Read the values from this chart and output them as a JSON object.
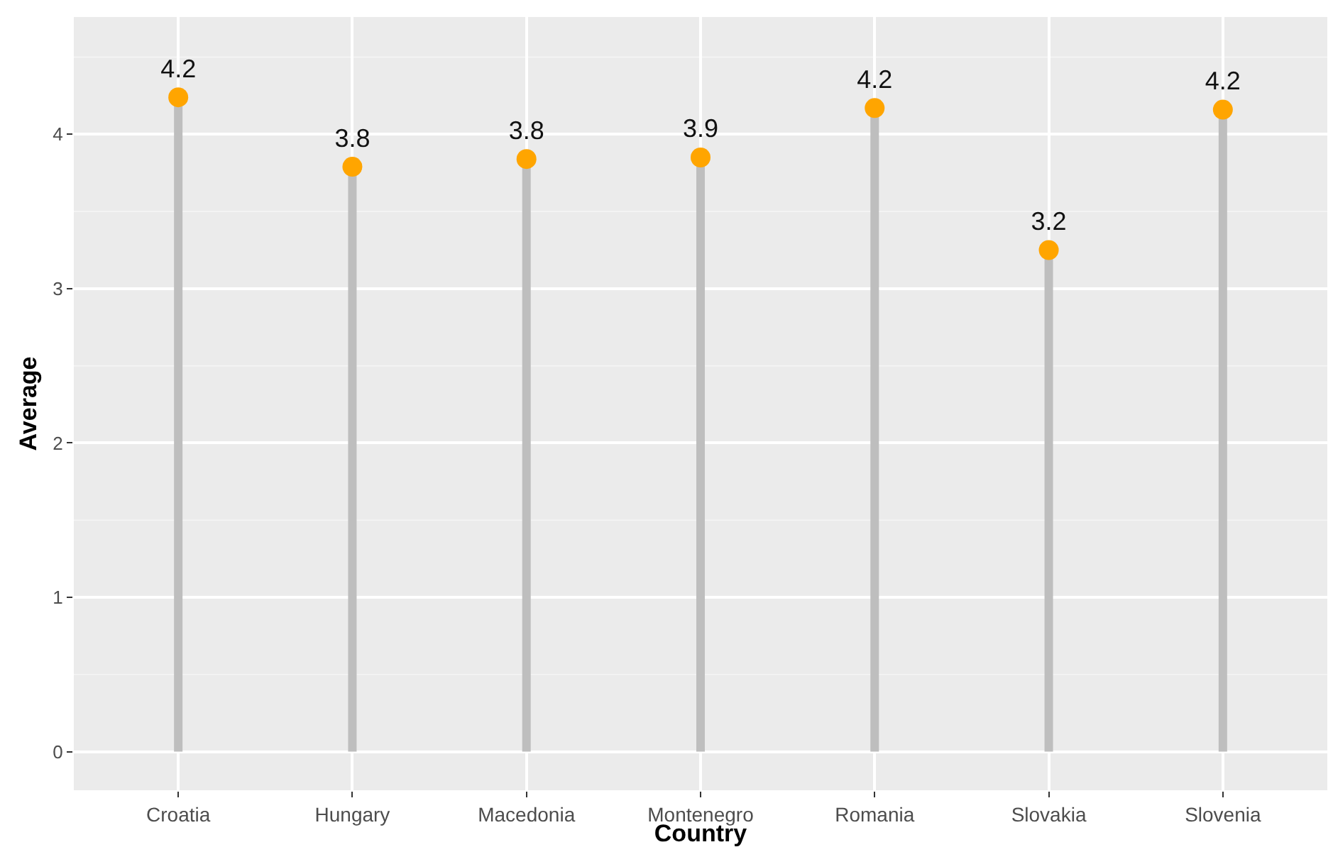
{
  "chart_data": {
    "type": "lollipop",
    "xlabel": "Country",
    "ylabel": "Average",
    "categories": [
      "Croatia",
      "Hungary",
      "Macedonia",
      "Montenegro",
      "Romania",
      "Slovakia",
      "Slovenia"
    ],
    "values": [
      4.24,
      3.79,
      3.84,
      3.85,
      4.17,
      3.25,
      4.16
    ],
    "value_labels": [
      "4.2",
      "3.8",
      "3.8",
      "3.9",
      "4.2",
      "3.2",
      "4.2"
    ],
    "color": "#ffa500",
    "ylim": [
      -0.25,
      4.76
    ],
    "yticks": [
      0,
      1,
      2,
      3,
      4
    ],
    "grid": true,
    "marker": "circle"
  }
}
